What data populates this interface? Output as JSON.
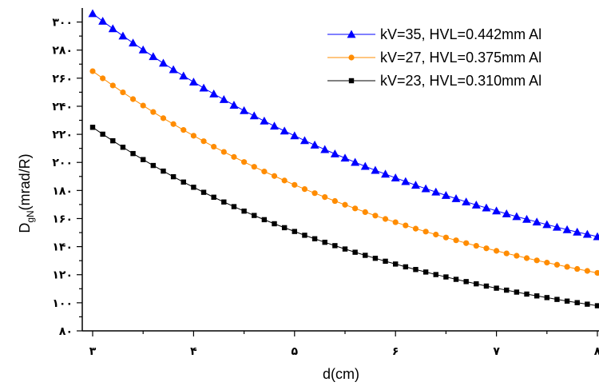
{
  "chart_data": {
    "type": "line",
    "xlabel": "d(cm)",
    "ylabel_main": "D",
    "ylabel_sub": "gN",
    "ylabel_rest": "(mrad/R)",
    "xlim": [
      3,
      8
    ],
    "ylim": [
      80,
      310
    ],
    "x_ticks": [
      {
        "value": 3,
        "label": "۳"
      },
      {
        "value": 4,
        "label": "۴"
      },
      {
        "value": 5,
        "label": "۵"
      },
      {
        "value": 6,
        "label": "۶"
      },
      {
        "value": 7,
        "label": "۷"
      },
      {
        "value": 8,
        "label": "۸"
      }
    ],
    "y_ticks": [
      {
        "value": 80,
        "label": "۸۰"
      },
      {
        "value": 100,
        "label": "۱۰۰"
      },
      {
        "value": 120,
        "label": "۱۲۰"
      },
      {
        "value": 140,
        "label": "۱۴۰"
      },
      {
        "value": 160,
        "label": "۱۶۰"
      },
      {
        "value": 180,
        "label": "۱۸۰"
      },
      {
        "value": 200,
        "label": "۲۰۰"
      },
      {
        "value": 220,
        "label": "۲۲۰"
      },
      {
        "value": 240,
        "label": "۲۴۰"
      },
      {
        "value": 260,
        "label": "۲۶۰"
      },
      {
        "value": 280,
        "label": "۲۸۰"
      },
      {
        "value": 300,
        "label": "۳۰۰"
      }
    ],
    "x_start": 3,
    "x_step": 0.1,
    "legend_position": "top-right",
    "series": [
      {
        "name": "kV=35, HVL=0.442mm Al",
        "color": "#0000ff",
        "marker": "triangle",
        "values": [
          306,
          300.6,
          295.3,
          290.1,
          285.1,
          280.2,
          275.4,
          270.7,
          266.1,
          261.6,
          257.3,
          253.0,
          248.8,
          244.8,
          240.8,
          236.9,
          233.2,
          229.5,
          225.9,
          222.4,
          219.0,
          215.6,
          212.4,
          209.2,
          206.1,
          203.1,
          200.1,
          197.2,
          194.4,
          191.7,
          189.0,
          186.4,
          183.8,
          181.3,
          178.9,
          176.5,
          174.2,
          171.9,
          169.7,
          167.6,
          165.5,
          163.4,
          161.4,
          159.5,
          157.6,
          155.7,
          153.9,
          152.1,
          150.4,
          148.8,
          147.1
        ]
      },
      {
        "name": "kV=27, HVL=0.375mm Al",
        "color": "#ff8c00",
        "marker": "circle",
        "values": [
          265,
          259.9,
          254.8,
          249.9,
          245.1,
          240.5,
          235.9,
          231.5,
          227.3,
          223.1,
          219.0,
          215.1,
          211.2,
          207.5,
          203.9,
          200.3,
          196.9,
          193.5,
          190.3,
          187.1,
          184.0,
          181.0,
          178.1,
          175.3,
          172.5,
          169.8,
          167.2,
          164.6,
          162.1,
          159.7,
          157.4,
          155.1,
          152.8,
          150.7,
          148.6,
          146.5,
          144.5,
          142.5,
          140.6,
          138.8,
          137.0,
          135.2,
          133.5,
          131.8,
          130.2,
          128.6,
          127.1,
          125.6,
          124.1,
          122.7,
          121.3
        ]
      },
      {
        "name": "kV=23, HVL=0.310mm Al",
        "color": "#000000",
        "marker": "square",
        "values": [
          225,
          220.1,
          215.4,
          210.8,
          206.3,
          202.0,
          197.8,
          193.8,
          189.8,
          186.0,
          182.3,
          178.7,
          175.2,
          171.8,
          168.5,
          165.3,
          162.2,
          159.2,
          156.3,
          153.5,
          150.8,
          148.1,
          145.6,
          143.1,
          140.7,
          138.3,
          136.0,
          133.8,
          131.7,
          129.6,
          127.6,
          125.6,
          123.7,
          121.9,
          120.1,
          118.4,
          116.7,
          115.1,
          113.5,
          111.9,
          110.4,
          109.0,
          107.6,
          106.2,
          104.9,
          103.7,
          102.4,
          101.2,
          100.1,
          99.0,
          97.9
        ]
      }
    ]
  }
}
